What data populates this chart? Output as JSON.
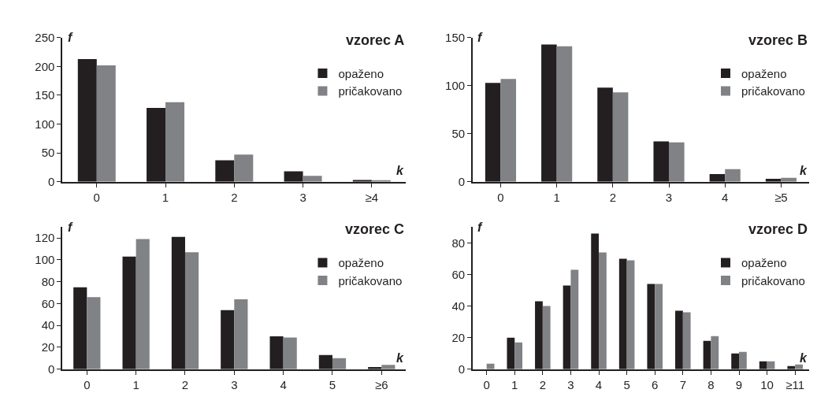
{
  "chart_data": [
    {
      "type": "bar",
      "title": "vzorec A",
      "xlabel": "k",
      "ylabel": "f",
      "categories": [
        "0",
        "1",
        "2",
        "3",
        "≥4"
      ],
      "ylim": [
        0,
        250
      ],
      "yticks": [
        0,
        50,
        100,
        150,
        200,
        250
      ],
      "legend": "top right",
      "series": [
        {
          "name": "opaženo",
          "color": "#231f20",
          "values": [
            213,
            128,
            37,
            18,
            3
          ]
        },
        {
          "name": "pričakovano",
          "color": "#808285",
          "values": [
            202,
            138,
            47,
            10,
            2
          ]
        }
      ]
    },
    {
      "type": "bar",
      "title": "vzorec B",
      "xlabel": "k",
      "ylabel": "f",
      "categories": [
        "0",
        "1",
        "2",
        "3",
        "4",
        "≥5"
      ],
      "ylim": [
        0,
        150
      ],
      "yticks": [
        0,
        50,
        100,
        150
      ],
      "legend": "top right",
      "series": [
        {
          "name": "opaženo",
          "color": "#231f20",
          "values": [
            103,
            143,
            98,
            42,
            8,
            3
          ]
        },
        {
          "name": "pričakovano",
          "color": "#808285",
          "values": [
            107,
            141,
            93,
            41,
            13,
            4
          ]
        }
      ]
    },
    {
      "type": "bar",
      "title": "vzorec C",
      "xlabel": "k",
      "ylabel": "f",
      "categories": [
        "0",
        "1",
        "2",
        "3",
        "4",
        "5",
        "≥6"
      ],
      "ylim": [
        0,
        130
      ],
      "yticks": [
        0,
        20,
        40,
        60,
        80,
        100,
        120
      ],
      "legend": "top right",
      "series": [
        {
          "name": "opaženo",
          "color": "#231f20",
          "values": [
            75,
            103,
            121,
            54,
            30,
            13,
            2
          ]
        },
        {
          "name": "pričakovano",
          "color": "#808285",
          "values": [
            66,
            119,
            107,
            64,
            29,
            10,
            4
          ]
        }
      ]
    },
    {
      "type": "bar",
      "title": "vzorec D",
      "xlabel": "k",
      "ylabel": "f",
      "categories": [
        "0",
        "1",
        "2",
        "3",
        "4",
        "5",
        "6",
        "7",
        "8",
        "9",
        "10",
        "≥11"
      ],
      "ylim": [
        0,
        90
      ],
      "yticks": [
        0,
        20,
        40,
        60,
        80
      ],
      "legend": "top right",
      "series": [
        {
          "name": "opaženo",
          "color": "#231f20",
          "values": [
            0,
            20,
            43,
            53,
            86,
            70,
            54,
            37,
            18,
            10,
            5,
            2
          ]
        },
        {
          "name": "pričakovano",
          "color": "#808285",
          "values": [
            3.5,
            17,
            40,
            63,
            74,
            69,
            54,
            36,
            21,
            11,
            5,
            3
          ]
        }
      ]
    }
  ]
}
